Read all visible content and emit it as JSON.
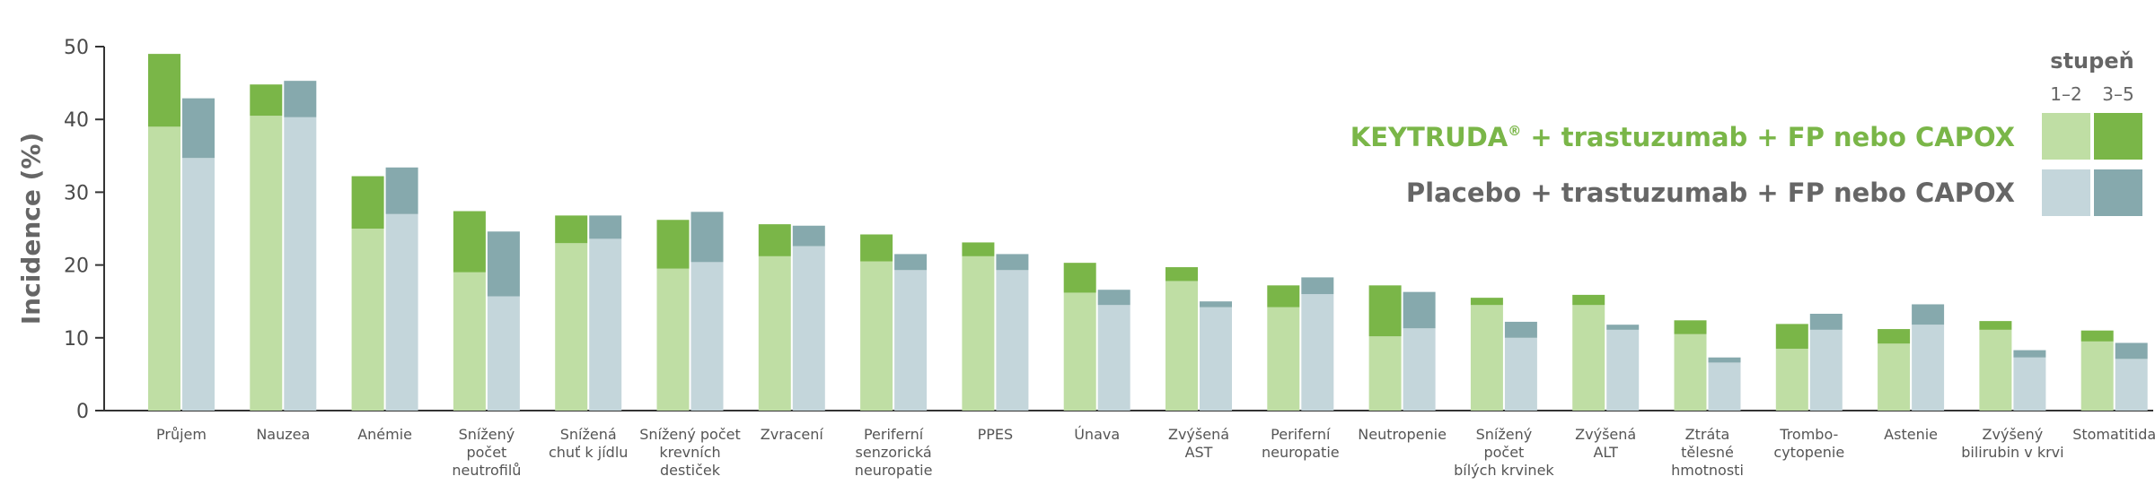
{
  "chart_data": {
    "type": "bar",
    "stacked": true,
    "ylabel": "Incidence (%)",
    "ylim": [
      0,
      50
    ],
    "yticks": [
      0,
      10,
      20,
      30,
      40,
      50
    ],
    "grid": false,
    "categories": [
      [
        "Průjem"
      ],
      [
        "Nauzea"
      ],
      [
        "Anémie"
      ],
      [
        "Snížený",
        "počet",
        "neutrofilů"
      ],
      [
        "Snížená",
        "chuť k jídlu"
      ],
      [
        "Snížený počet",
        "krevních",
        "destiček"
      ],
      [
        "Zvracení"
      ],
      [
        "Periferní",
        "senzorická",
        "neuropatie"
      ],
      [
        "PPES"
      ],
      [
        "Únava"
      ],
      [
        "Zvýšená",
        "AST"
      ],
      [
        "Periferní",
        "neuropatie"
      ],
      [
        "Neutropenie"
      ],
      [
        "Snížený",
        "počet",
        "bílých krvinek"
      ],
      [
        "Zvýšená",
        "ALT"
      ],
      [
        "Ztráta",
        "tělesné",
        "hmotnosti"
      ],
      [
        "Trombo-",
        "cytopenie"
      ],
      [
        "Astenie"
      ],
      [
        "Zvýšený",
        "bilirubin v krvi"
      ],
      [
        "Stomatitida"
      ]
    ],
    "legend": {
      "position": "top-right",
      "title": "stupeň",
      "grades": [
        "1–2",
        "3–5"
      ]
    },
    "series": [
      {
        "name_main": "KEYTRUDA",
        "name_sup": "®",
        "name_rest": " + trastuzumab + FP nebo CAPOX",
        "label_color": "#7ab648",
        "color_grade_1_2": "#bfdea4",
        "color_grade_3_5": "#7ab648",
        "grade_1_2": [
          39,
          40.5,
          25,
          19,
          23,
          19.5,
          21.2,
          20.5,
          21.2,
          16.2,
          17.8,
          14.2,
          10.2,
          14.5,
          14.5,
          10.5,
          8.5,
          9.2,
          11.1,
          9.5
        ],
        "total": [
          49,
          44.8,
          32.2,
          27.4,
          26.8,
          26.2,
          25.6,
          24.2,
          23.1,
          20.3,
          19.7,
          17.2,
          17.2,
          15.5,
          15.9,
          12.4,
          11.9,
          11.2,
          12.3,
          11
        ]
      },
      {
        "name_main": "Placebo + trastuzumab + FP nebo CAPOX",
        "name_sup": "",
        "name_rest": "",
        "label_color": "#666666",
        "color_grade_1_2": "#c4d6db",
        "color_grade_3_5": "#86a9ad",
        "grade_1_2": [
          34.7,
          40.3,
          27,
          15.7,
          23.6,
          20.4,
          22.6,
          19.3,
          19.3,
          14.5,
          14.2,
          16,
          11.3,
          10,
          11.1,
          6.6,
          11.1,
          11.8,
          7.3,
          7.1
        ],
        "total": [
          42.9,
          45.3,
          33.4,
          24.6,
          26.8,
          27.3,
          25.4,
          21.5,
          21.5,
          16.6,
          15,
          18.3,
          16.3,
          12.2,
          11.8,
          7.3,
          13.3,
          14.6,
          8.3,
          9.3
        ]
      }
    ]
  }
}
